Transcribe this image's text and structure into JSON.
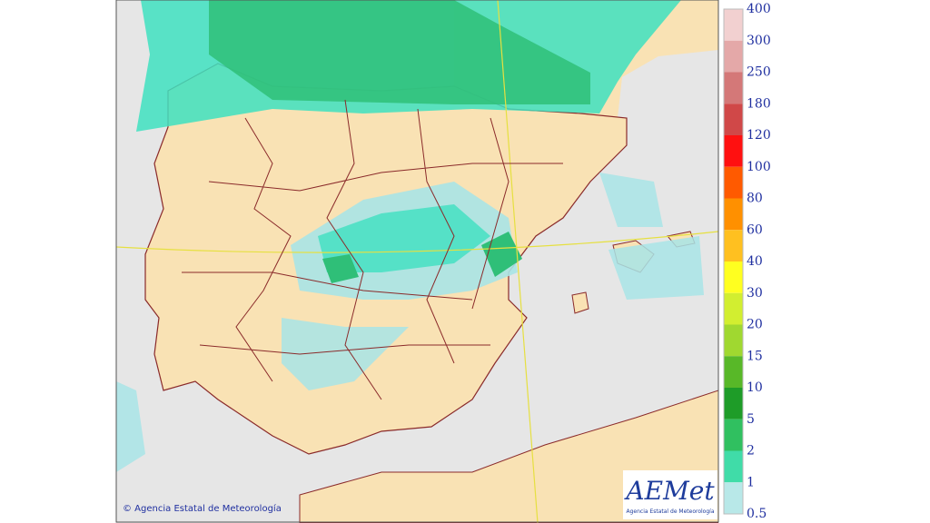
{
  "map": {
    "credit": "© Agencia Estatal de Meteorología"
  },
  "logo": {
    "name": "AEMet",
    "subtitle": "Agencia Estatal de Meteorología"
  },
  "legend": {
    "items": [
      "400",
      "300",
      "250",
      "180",
      "120",
      "100",
      "80",
      "60",
      "40",
      "30",
      "20",
      "15",
      "10",
      "5",
      "2",
      "1",
      "0.5"
    ],
    "colors": [
      "#f2d0d0",
      "#e4a8a8",
      "#d47878",
      "#d04848",
      "#ff1010",
      "#ff5a00",
      "#ff9000",
      "#ffc020",
      "#ffff20",
      "#d2ee30",
      "#a0d830",
      "#58b828",
      "#1e9c28",
      "#30c060",
      "#40dca8",
      "#b8e8e8"
    ]
  }
}
